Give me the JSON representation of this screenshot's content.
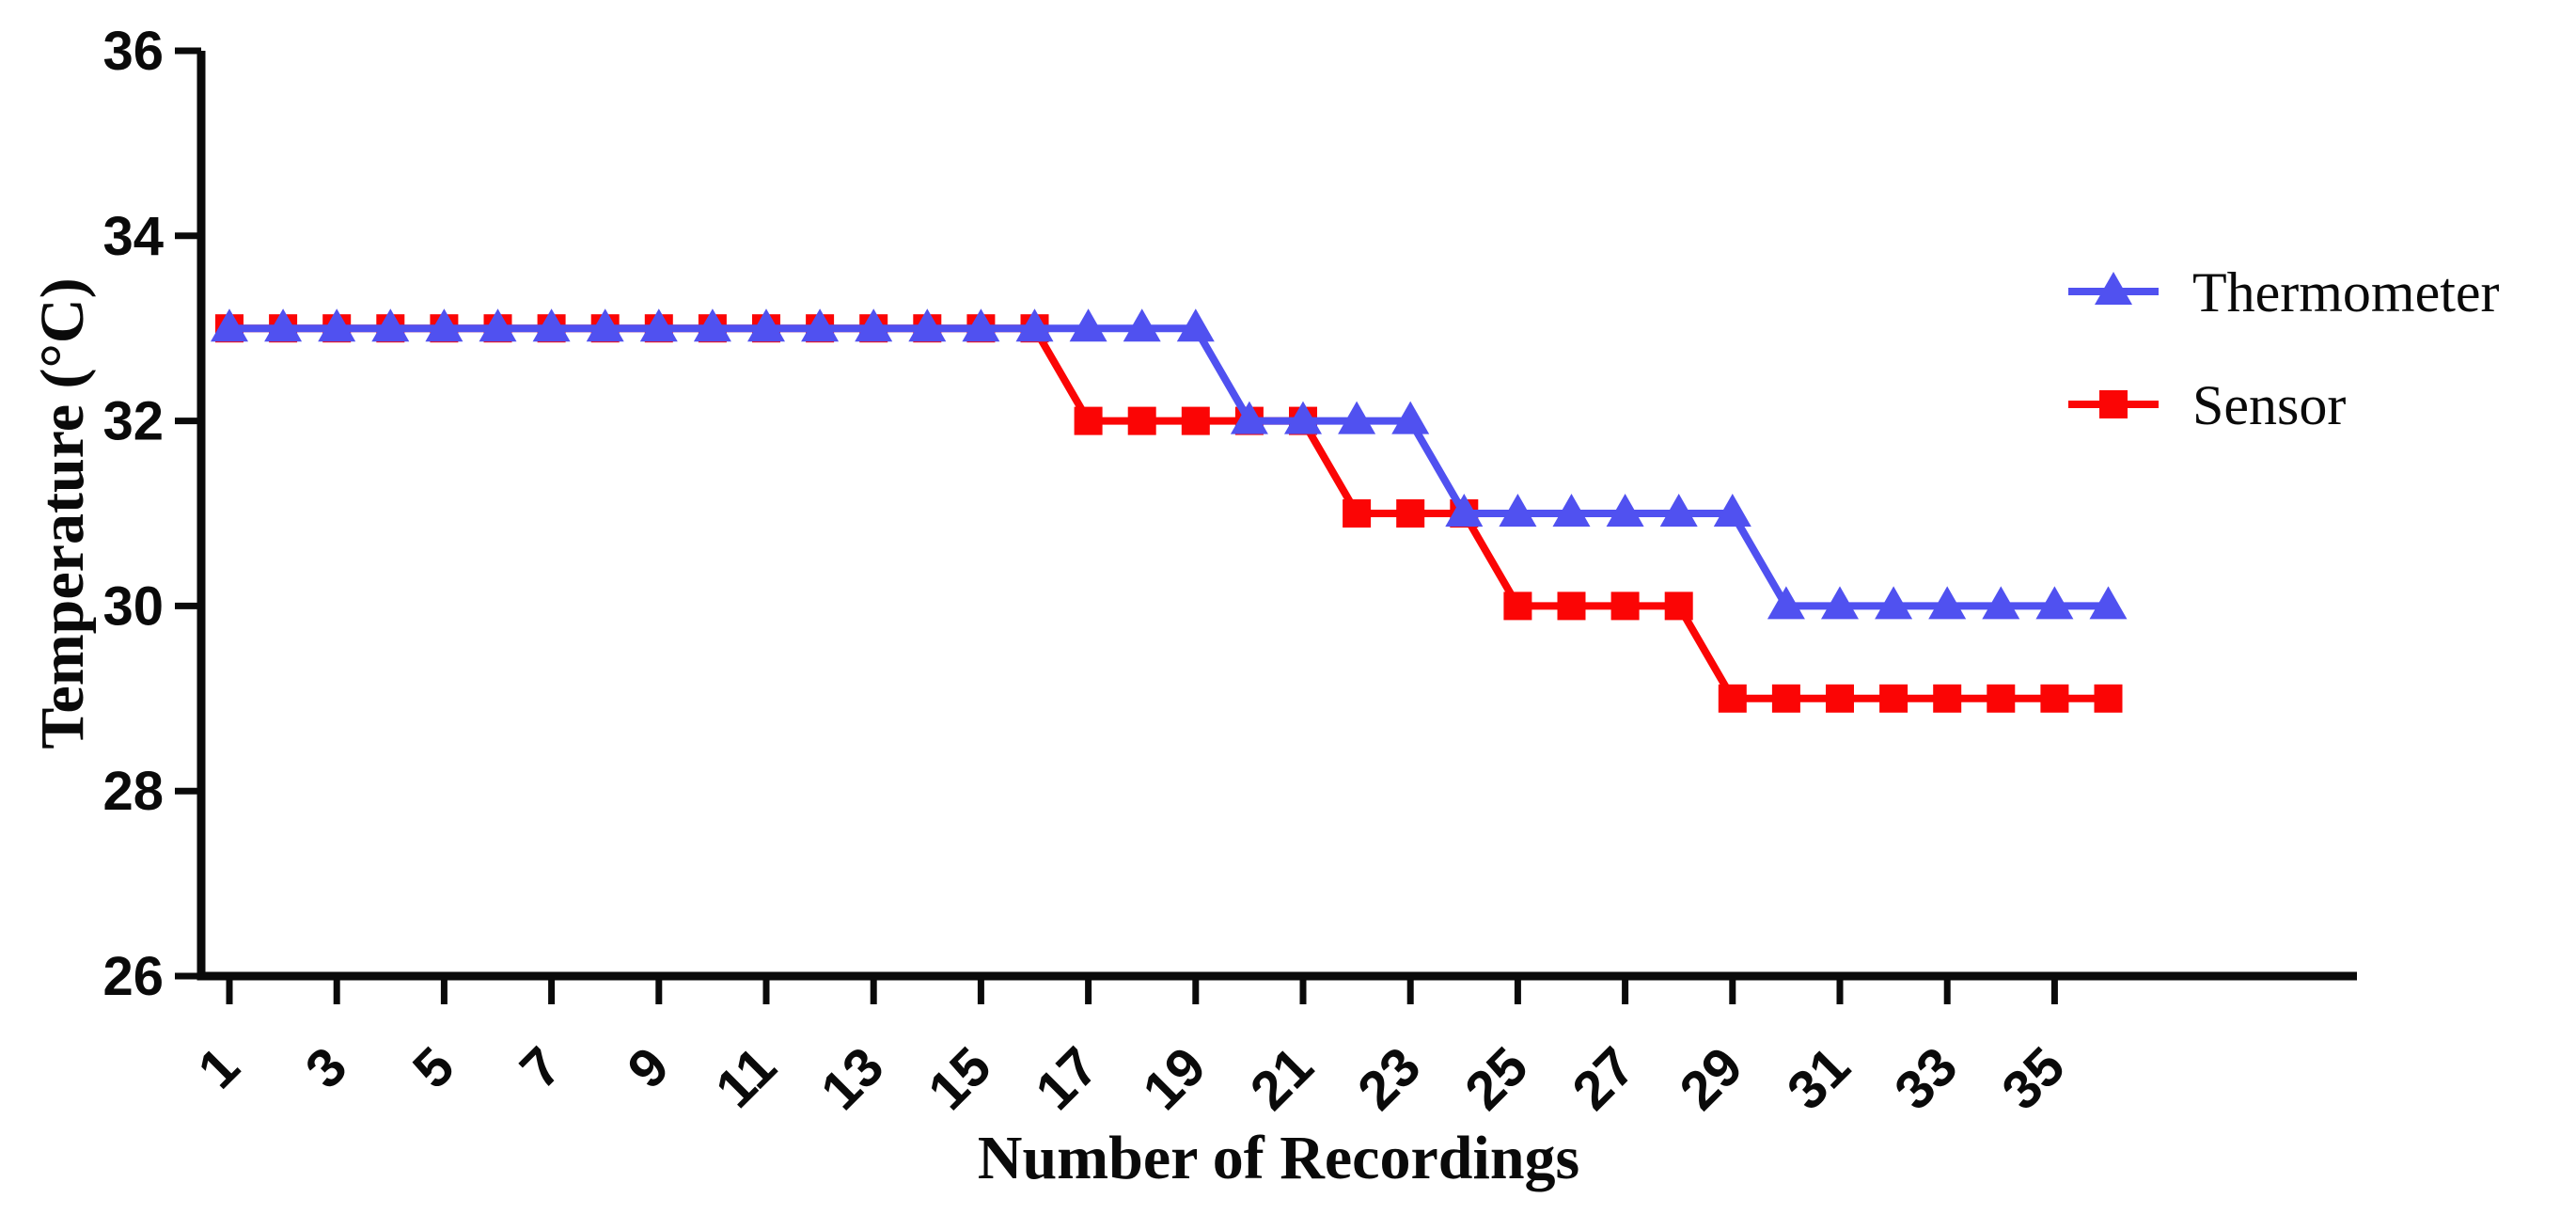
{
  "chart_data": {
    "type": "line",
    "title": "",
    "xlabel": "Number of Recordings",
    "ylabel": "Temperature (°C)",
    "x": [
      1,
      2,
      3,
      4,
      5,
      6,
      7,
      8,
      9,
      10,
      11,
      12,
      13,
      14,
      15,
      16,
      17,
      18,
      19,
      20,
      21,
      22,
      23,
      24,
      25,
      26,
      27,
      28,
      29,
      30,
      31,
      32,
      33,
      34,
      35,
      36
    ],
    "x_tick_labels": [
      "1",
      "3",
      "5",
      "7",
      "9",
      "11",
      "13",
      "15",
      "17",
      "19",
      "21",
      "23",
      "25",
      "27",
      "29",
      "31",
      "33",
      "35"
    ],
    "y_ticks": [
      26,
      28,
      30,
      32,
      34,
      36
    ],
    "ylim": [
      26,
      36
    ],
    "grid": false,
    "legend_position": "right",
    "axis_color": "#0a0a0a",
    "z_order_bottom_to_top": [
      "Sensor",
      "Thermometer"
    ],
    "series": [
      {
        "name": "Thermometer",
        "color": "#5051f0",
        "marker": "triangle",
        "values": [
          33,
          33,
          33,
          33,
          33,
          33,
          33,
          33,
          33,
          33,
          33,
          33,
          33,
          33,
          33,
          33,
          33,
          33,
          33,
          32,
          32,
          32,
          32,
          31,
          31,
          31,
          31,
          31,
          31,
          30,
          30,
          30,
          30,
          30,
          30,
          30
        ]
      },
      {
        "name": "Sensor",
        "color": "#fb0505",
        "marker": "square",
        "values": [
          33,
          33,
          33,
          33,
          33,
          33,
          33,
          33,
          33,
          33,
          33,
          33,
          33,
          33,
          33,
          33,
          32,
          32,
          32,
          32,
          32,
          31,
          31,
          31,
          30,
          30,
          30,
          30,
          29,
          29,
          29,
          29,
          29,
          29,
          29,
          29
        ]
      }
    ]
  }
}
